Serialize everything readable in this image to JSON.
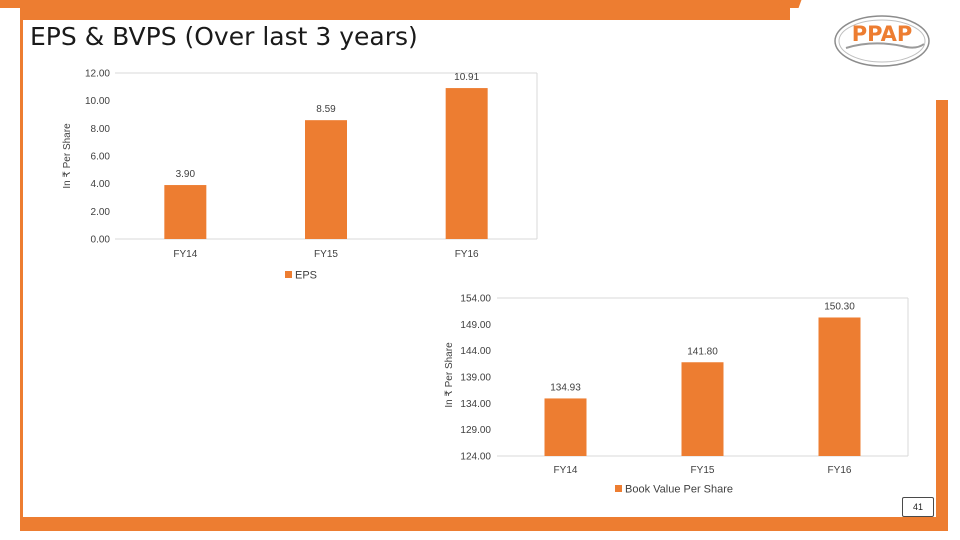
{
  "page": {
    "title": "EPS & BVPS (Over last 3 years)",
    "page_number": "41",
    "logo_text": "PPAP"
  },
  "colors": {
    "accent": "#ED7D31",
    "grid": "#D9D9D9",
    "text": "#404040"
  },
  "chart_data": [
    {
      "type": "bar",
      "categories": [
        "FY14",
        "FY15",
        "FY16"
      ],
      "series": [
        {
          "name": "EPS",
          "values": [
            3.9,
            8.59,
            10.91
          ]
        }
      ],
      "data_labels": [
        "3.90",
        "8.59",
        "10.91"
      ],
      "yticks": [
        "0.00",
        "2.00",
        "4.00",
        "6.00",
        "8.00",
        "10.00",
        "12.00"
      ],
      "ylabel": "In ₹ Per Share",
      "ylim": [
        0,
        12
      ],
      "grid": false,
      "legend": "bottom"
    },
    {
      "type": "bar",
      "categories": [
        "FY14",
        "FY15",
        "FY16"
      ],
      "series": [
        {
          "name": "Book Value Per Share",
          "values": [
            134.93,
            141.8,
            150.3
          ]
        }
      ],
      "data_labels": [
        "134.93",
        "141.80",
        "150.30"
      ],
      "yticks": [
        "124.00",
        "129.00",
        "134.00",
        "139.00",
        "144.00",
        "149.00",
        "154.00"
      ],
      "ylabel": "In ₹ Per Share",
      "ylim": [
        124,
        154
      ],
      "grid": false,
      "legend": "bottom"
    }
  ]
}
